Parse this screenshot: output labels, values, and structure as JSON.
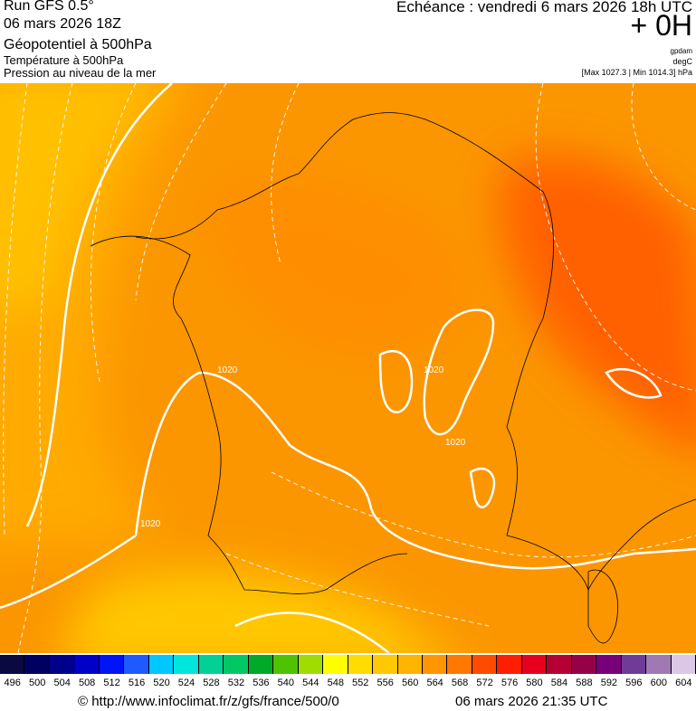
{
  "header": {
    "run": "Run GFS 0.5°",
    "run_date": "06 mars 2026 18Z",
    "field1": "Géopotentiel à 500hPa",
    "field2": "Température à 500hPa",
    "field3": "Pression au niveau de la mer",
    "echeance": "Echéance : vendredi 6 mars 2026 18h UTC",
    "offset": "+ 0H",
    "unit1": "gpdam",
    "unit2": "degC",
    "minmax": "[Max 1027.3 | Min 1014.3] hPa"
  },
  "map": {
    "isobar_labels": [
      "1020",
      "1020",
      "1020",
      "1020"
    ],
    "colors": {
      "base": "#fb9600",
      "light": "#ffb400",
      "yellow": "#ffcc00",
      "red": "#ff6000"
    }
  },
  "legend": {
    "values": [
      "496",
      "500",
      "504",
      "508",
      "512",
      "516",
      "520",
      "524",
      "528",
      "532",
      "536",
      "540",
      "544",
      "548",
      "552",
      "556",
      "560",
      "564",
      "568",
      "572",
      "576",
      "580",
      "584",
      "588",
      "592",
      "596",
      "600",
      "604"
    ],
    "colors": [
      "#0a0a40",
      "#000060",
      "#00008c",
      "#0000c8",
      "#0014f5",
      "#1e5aff",
      "#00c8ff",
      "#00e6dc",
      "#00d296",
      "#00c864",
      "#00aa28",
      "#50c300",
      "#a0dc00",
      "#ffff00",
      "#ffdc00",
      "#ffc800",
      "#ffb400",
      "#ff9600",
      "#ff7800",
      "#ff4b00",
      "#ff1e00",
      "#e6001e",
      "#b40032",
      "#960046",
      "#780078",
      "#6e3c96",
      "#a078b4",
      "#dcc8e6"
    ]
  },
  "footer": {
    "url": "© http://www.infoclimat.fr/z/gfs/france/500/0",
    "generated": "06 mars 2026 21:35 UTC"
  }
}
